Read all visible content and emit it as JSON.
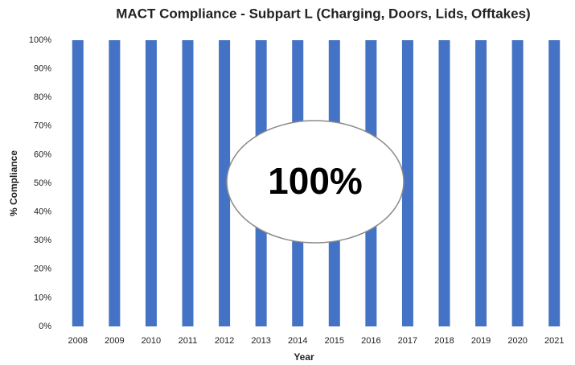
{
  "chart_data": {
    "type": "bar",
    "title": "MACT Compliance - Subpart L (Charging, Doors, Lids, Offtakes)",
    "x_label": "Year",
    "y_label": "% Compliance",
    "annotation": "100%",
    "categories": [
      "2008",
      "2009",
      "2010",
      "2011",
      "2012",
      "2013",
      "2014",
      "2015",
      "2016",
      "2017",
      "2018",
      "2019",
      "2020",
      "2021"
    ],
    "values": [
      100,
      100,
      100,
      100,
      100,
      100,
      100,
      100,
      100,
      100,
      100,
      100,
      100,
      100
    ],
    "color": "#4472c4",
    "ylim": [
      0,
      100
    ],
    "yticks": [
      {
        "value": 0,
        "label": "0%"
      },
      {
        "value": 10,
        "label": "10%"
      },
      {
        "value": 20,
        "label": "20%"
      },
      {
        "value": 30,
        "label": "30%"
      },
      {
        "value": 40,
        "label": "40%"
      },
      {
        "value": 50,
        "label": "50%"
      },
      {
        "value": 60,
        "label": "60%"
      },
      {
        "value": 70,
        "label": "70%"
      },
      {
        "value": 80,
        "label": "80%"
      },
      {
        "value": 90,
        "label": "90%"
      },
      {
        "value": 100,
        "label": "100%"
      }
    ],
    "grid": false
  }
}
